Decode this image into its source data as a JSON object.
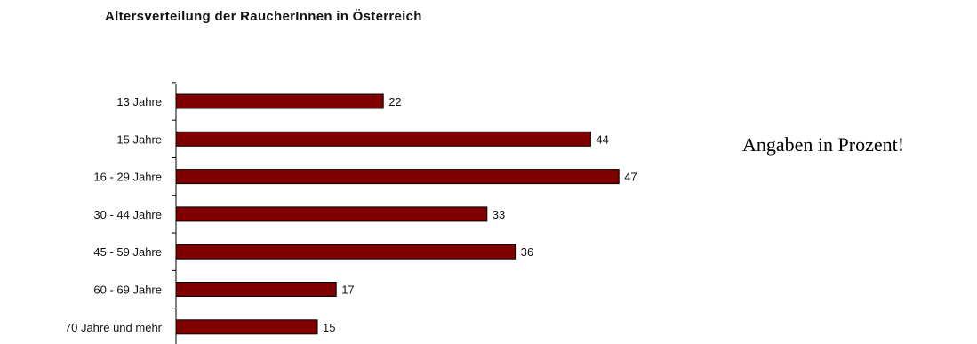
{
  "note": "Angaben in Prozent!",
  "chart_data": {
    "type": "bar",
    "orientation": "horizontal",
    "title": "Altersverteilung der RaucherInnen in Österreich",
    "categories": [
      "13 Jahre",
      "15 Jahre",
      "16 - 29 Jahre",
      "30 - 44 Jahre",
      "45 - 59 Jahre",
      "60 - 69 Jahre",
      "70 Jahre und mehr"
    ],
    "values": [
      22,
      44,
      47,
      33,
      36,
      17,
      15
    ],
    "bar_color": "#800000",
    "xlim": [
      0,
      50
    ],
    "grid": false,
    "legend": "none"
  }
}
